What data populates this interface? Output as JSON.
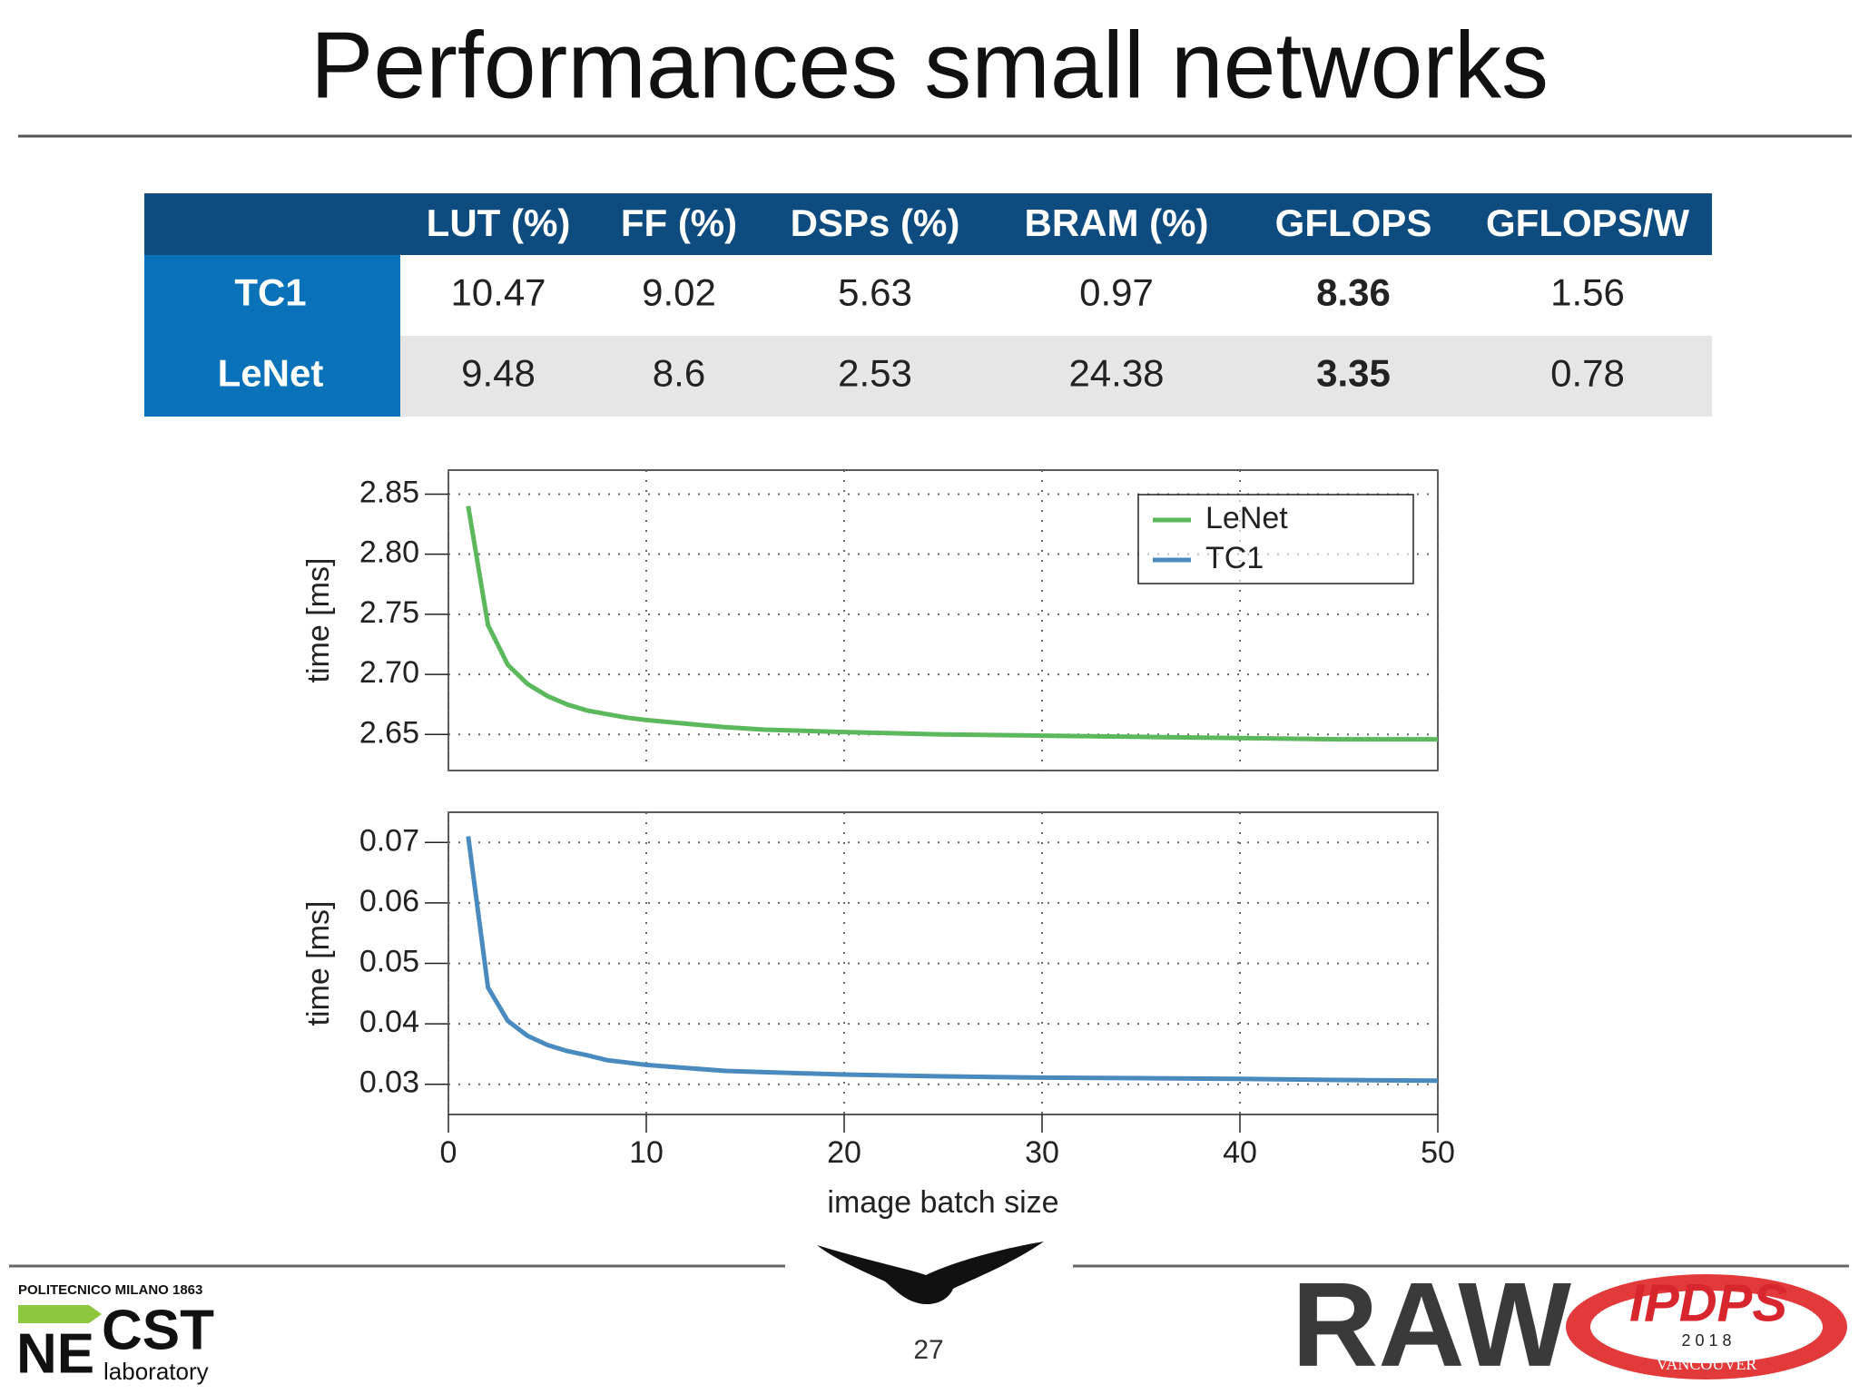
{
  "header": {
    "title": "Performances small networks"
  },
  "table": {
    "columns": [
      "LUT (%)",
      "FF (%)",
      "DSPs (%)",
      "BRAM (%)",
      "GFLOPS",
      "GFLOPS/W"
    ],
    "rows": [
      {
        "label": "TC1",
        "cells": [
          "10.47",
          "9.02",
          "5.63",
          "0.97",
          "8.36",
          "1.56"
        ]
      },
      {
        "label": "LeNet",
        "cells": [
          "9.48",
          "8.6",
          "2.53",
          "24.38",
          "3.35",
          "0.78"
        ]
      }
    ],
    "bold_column": 4
  },
  "chart_data": [
    {
      "type": "line",
      "ylabel": "time [ms]",
      "x": [
        1,
        2,
        3,
        4,
        5,
        6,
        7,
        8,
        9,
        10,
        12,
        14,
        16,
        18,
        20,
        25,
        30,
        35,
        40,
        45,
        50
      ],
      "xlim": [
        0,
        50
      ],
      "ylim": [
        2.62,
        2.87
      ],
      "yticks": [
        2.65,
        {
          "value": 2.7,
          "label": "2.70"
        },
        2.75,
        {
          "value": 2.8,
          "label": "2.80"
        },
        2.85
      ],
      "grid": true,
      "legend": "upper right",
      "series": [
        {
          "name": "LeNet",
          "color": "#5cb85c",
          "values": [
            2.84,
            2.741,
            2.708,
            2.692,
            2.682,
            2.675,
            2.67,
            2.667,
            2.664,
            2.662,
            2.659,
            2.656,
            2.654,
            2.653,
            2.652,
            2.65,
            2.649,
            2.648,
            2.647,
            2.646,
            2.646
          ]
        }
      ]
    },
    {
      "type": "line",
      "ylabel": "time [ms]",
      "xlabel": "image batch size",
      "x": [
        1,
        2,
        3,
        4,
        5,
        6,
        7,
        8,
        9,
        10,
        12,
        14,
        16,
        18,
        20,
        25,
        30,
        35,
        40,
        45,
        50
      ],
      "xlim": [
        0,
        50
      ],
      "xticks": [
        0,
        10,
        20,
        30,
        40,
        50
      ],
      "ylim": [
        0.025,
        0.075
      ],
      "yticks": [
        0.03,
        0.04,
        0.05,
        0.06,
        0.07
      ],
      "grid": true,
      "series": [
        {
          "name": "TC1",
          "color": "#4a8bbf",
          "values": [
            0.071,
            0.046,
            0.0405,
            0.038,
            0.0365,
            0.0355,
            0.0348,
            0.034,
            0.0336,
            0.0332,
            0.0327,
            0.0322,
            0.032,
            0.0318,
            0.0316,
            0.0313,
            0.0311,
            0.031,
            0.0309,
            0.0307,
            0.0306
          ]
        }
      ]
    }
  ],
  "footer": {
    "page": "27",
    "institution": "POLITECNICO MILANO 1863",
    "lab_ne": "NE",
    "lab_cst": "CST",
    "lab_sub": "laboratory",
    "raw": "RAW",
    "ipdps": "IPDPS",
    "year": "2 0 1 8",
    "city": "VANCOUVER"
  }
}
